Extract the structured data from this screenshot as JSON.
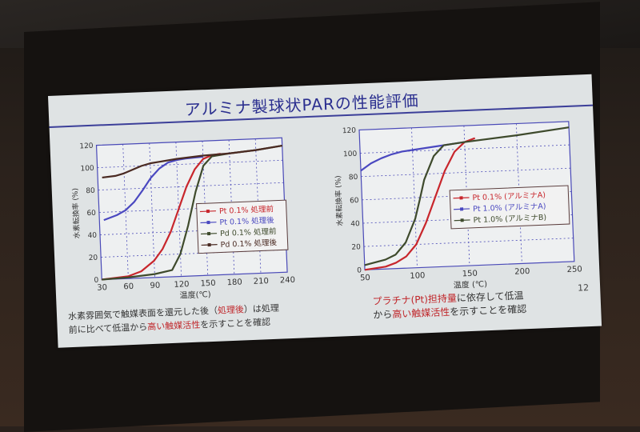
{
  "slide": {
    "title": "アルミナ製球状PARの性能評価",
    "page_number": "12",
    "left_caption": {
      "line1_a": "水素雰囲気で触媒表面を還元した後（",
      "line1_b": "処理後",
      "line1_c": "）は処理",
      "line2_a": "前に比べて低温から",
      "line2_b": "高い触媒活性",
      "line2_c": "を示すことを確認"
    },
    "right_caption": {
      "line1_a": "プラチナ(Pt)担持量",
      "line1_b": "に依存して低温",
      "line2_a": "から",
      "line2_b": "高い触媒活性",
      "line2_c": "を示すことを確認"
    }
  },
  "colors": {
    "title": "#2b2f8f",
    "red_series": "#c8262c",
    "blue_series": "#4a48c0",
    "green_series": "#3e4a2c",
    "brown_series": "#4a2a22",
    "grid": "#4a4ab8",
    "emphasis": "#c0262a"
  },
  "chart_data": [
    {
      "type": "line",
      "title": "",
      "xlabel": "温度(℃)",
      "ylabel": "水素転換率 (%)",
      "xlim": [
        30,
        240
      ],
      "ylim": [
        0,
        120
      ],
      "xticks": [
        30,
        60,
        90,
        120,
        150,
        180,
        210,
        240
      ],
      "yticks": [
        0,
        20,
        40,
        60,
        80,
        100,
        120
      ],
      "grid": true,
      "legend_position": "lower right",
      "series": [
        {
          "name": "Pt 0.1% 処理前",
          "color": "#c8262c",
          "x": [
            30,
            60,
            75,
            90,
            100,
            110,
            120,
            130,
            140,
            150,
            160,
            170
          ],
          "y": [
            0,
            2,
            6,
            15,
            25,
            40,
            60,
            80,
            95,
            104,
            107,
            108
          ]
        },
        {
          "name": "Pt 0.1% 処理後",
          "color": "#4a48c0",
          "x": [
            35,
            50,
            60,
            70,
            80,
            90,
            100,
            110,
            120,
            130,
            150
          ],
          "y": [
            53,
            57,
            61,
            68,
            78,
            89,
            97,
            102,
            104,
            105,
            106
          ]
        },
        {
          "name": "Pd 0.1% 処理前",
          "color": "#3e4a2c",
          "x": [
            30,
            60,
            90,
            110,
            120,
            130,
            140,
            150,
            160,
            180,
            210,
            240
          ],
          "y": [
            0,
            1,
            3,
            6,
            20,
            45,
            75,
            98,
            106,
            108,
            110,
            113
          ]
        },
        {
          "name": "Pd 0.1% 処理後",
          "color": "#4a2a22",
          "x": [
            35,
            50,
            60,
            70,
            80,
            90,
            100,
            120,
            150,
            180,
            210,
            240
          ],
          "y": [
            91,
            92,
            94,
            97,
            100,
            102,
            103,
            105,
            107,
            108,
            110,
            113
          ]
        }
      ]
    },
    {
      "type": "line",
      "title": "",
      "xlabel": "温度 (℃)",
      "ylabel": "水素転換率 (%)",
      "xlim": [
        50,
        250
      ],
      "ylim": [
        0,
        120
      ],
      "xticks": [
        50,
        100,
        150,
        200,
        250
      ],
      "yticks": [
        0,
        20,
        40,
        60,
        80,
        100,
        120
      ],
      "grid": true,
      "legend_position": "center right",
      "series": [
        {
          "name": "Pt 0.1% (アルミナA)",
          "color": "#c8262c",
          "x": [
            50,
            70,
            80,
            90,
            100,
            110,
            120,
            130,
            140,
            150,
            160
          ],
          "y": [
            0,
            2,
            5,
            10,
            20,
            38,
            60,
            82,
            98,
            106,
            109
          ]
        },
        {
          "name": "Pt 1.0% (アルミナA)",
          "color": "#4a48c0",
          "x": [
            50,
            55,
            60,
            70,
            80,
            90,
            100,
            120,
            140,
            150
          ],
          "y": [
            85,
            88,
            91,
            95,
            98,
            100,
            101,
            103,
            105,
            106
          ]
        },
        {
          "name": "Pt 1.0% (アルミナB)",
          "color": "#3e4a2c",
          "x": [
            50,
            70,
            80,
            90,
            100,
            105,
            110,
            120,
            130,
            150,
            200,
            250
          ],
          "y": [
            4,
            8,
            12,
            22,
            42,
            58,
            75,
            95,
            104,
            106,
            110,
            115
          ]
        }
      ]
    }
  ]
}
